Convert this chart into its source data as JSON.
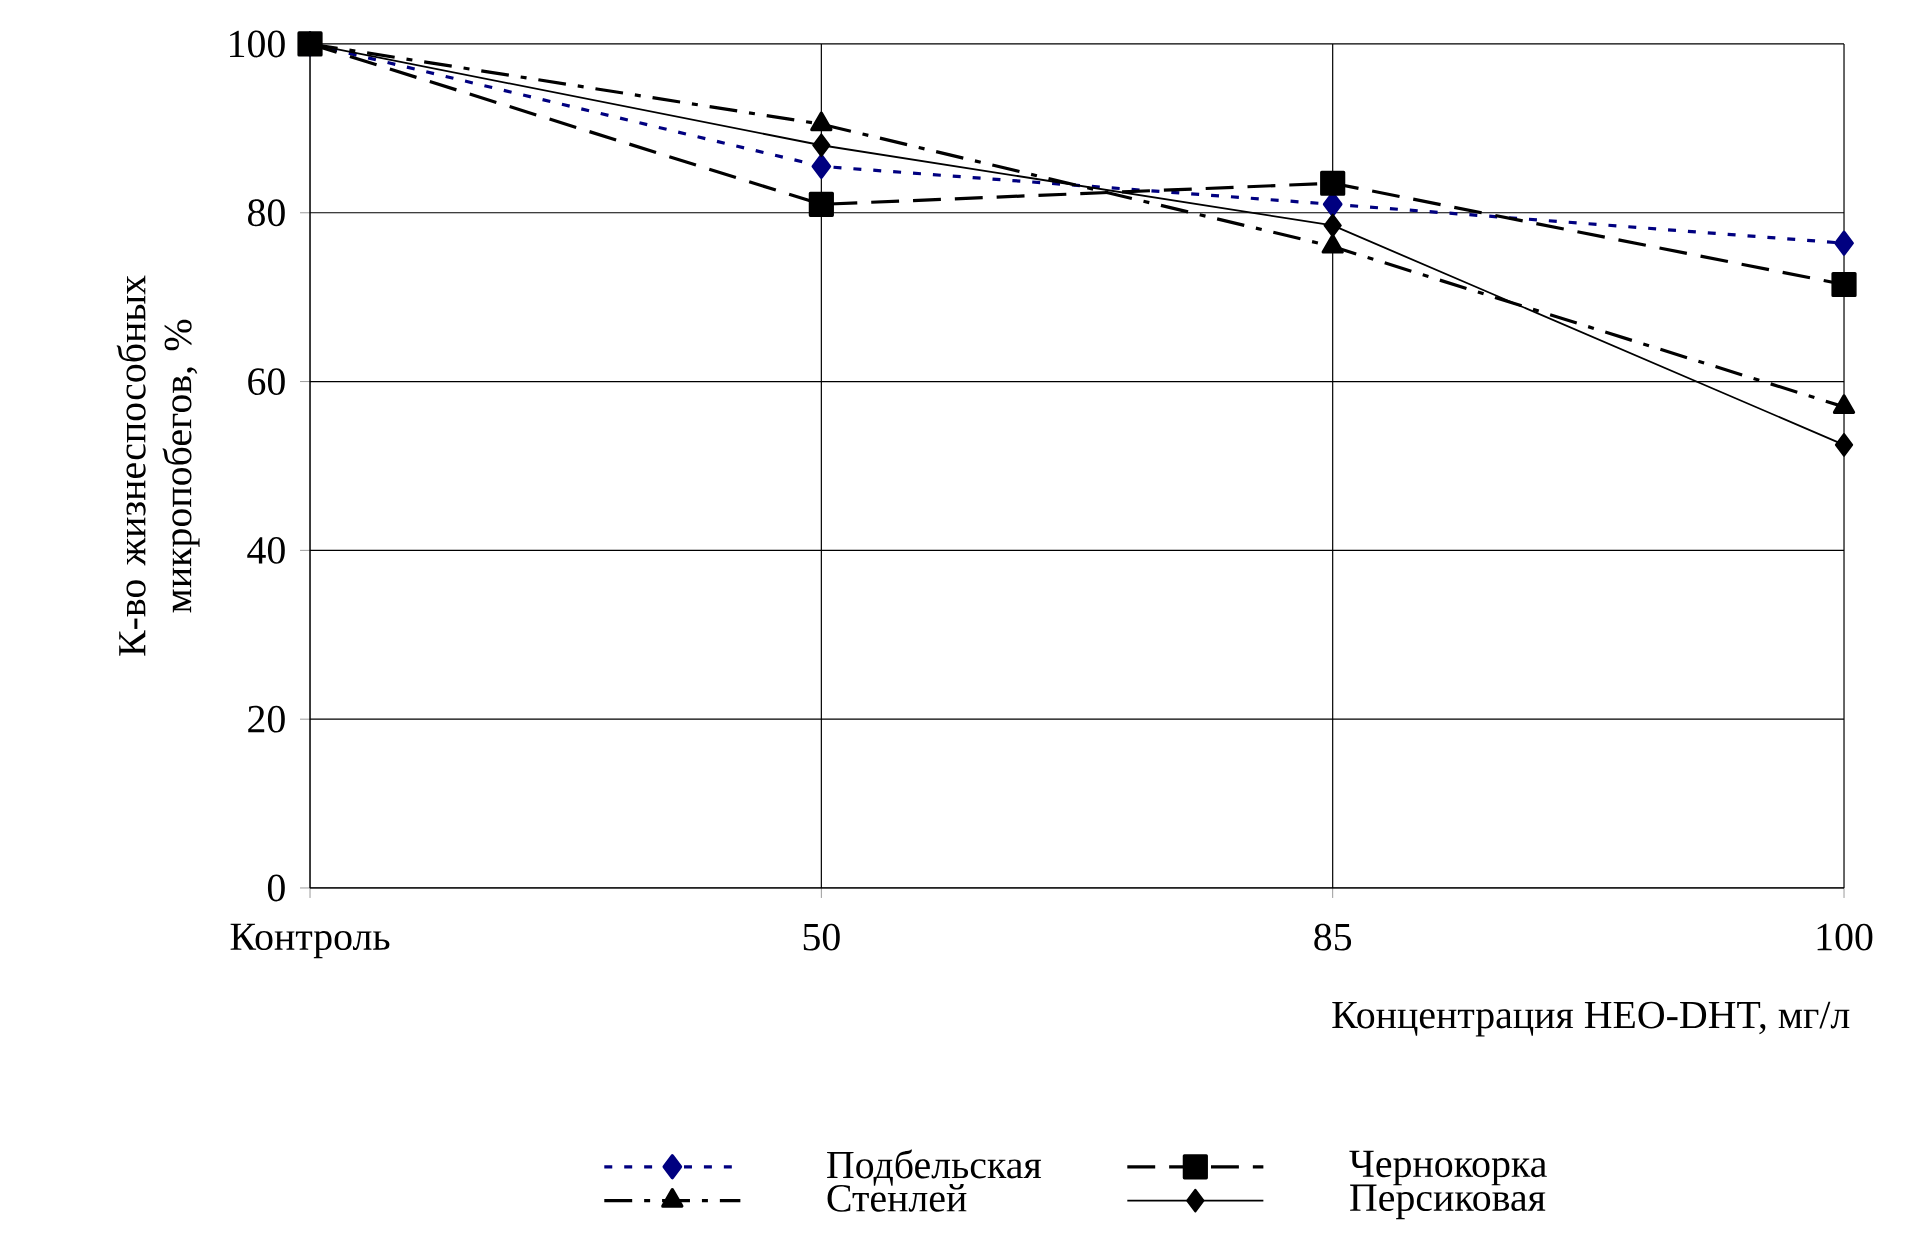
{
  "chart_data": {
    "type": "line",
    "categories": [
      "Контроль",
      "50",
      "85",
      "100"
    ],
    "xlabel": "Концентрация HEO-DHT, мг/л",
    "ylabel": "К-во жизнеспособных микропобегов, %",
    "ylim": [
      0,
      100
    ],
    "yticks": [
      0,
      20,
      40,
      60,
      80,
      100
    ],
    "grid": true,
    "legend": "bottom",
    "series": [
      {
        "name": "Подбельская",
        "color": "#000080",
        "marker": "diamond",
        "line_style": "dotted",
        "values": [
          100,
          85.5,
          81,
          76.4
        ]
      },
      {
        "name": "Чернокорка",
        "color": "#000000",
        "marker": "square",
        "line_style": "dashed",
        "values": [
          100,
          81,
          83.5,
          71.5
        ]
      },
      {
        "name": "Стенлей",
        "color": "#000000",
        "marker": "triangle",
        "line_style": "dashdotted",
        "values": [
          100,
          90.5,
          76,
          57
        ]
      },
      {
        "name": "Персиковая",
        "color": "#000000",
        "marker": "diamond",
        "line_style": "solid",
        "values": [
          100,
          88,
          78.5,
          52.5
        ]
      }
    ]
  }
}
